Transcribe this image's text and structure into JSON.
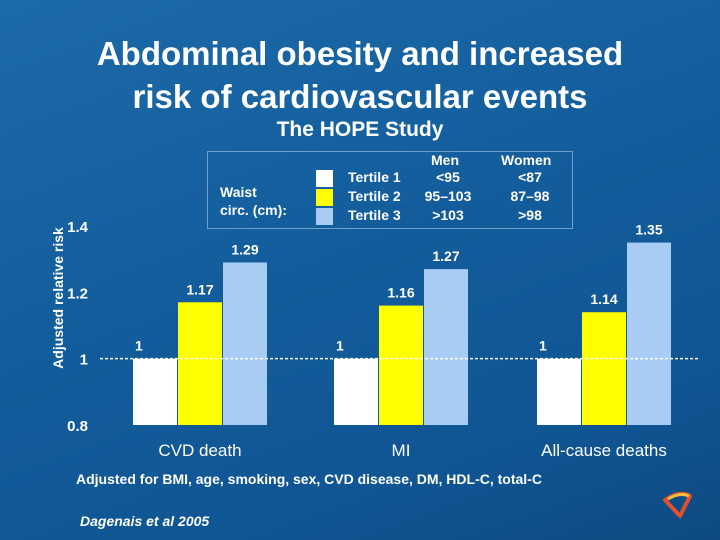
{
  "title_line1": "Abdominal obesity and increased",
  "title_line2": "risk of cardiovascular events",
  "subtitle": "The HOPE Study",
  "legend": {
    "heading": [
      "Waist",
      "circ. (cm):"
    ],
    "men_header": "Men",
    "women_header": "Women",
    "rows": [
      {
        "label": "Tertile 1",
        "men": "<95",
        "women": "<87",
        "color": "#ffffff"
      },
      {
        "label": "Tertile 2",
        "men": "95–103",
        "women": "87–98",
        "color": "#ffff00"
      },
      {
        "label": "Tertile 3",
        "men": ">103",
        "women": ">98",
        "color": "#a9ccf5"
      }
    ]
  },
  "chart_data": {
    "type": "bar",
    "ylabel": "Adjusted relative risk",
    "ylim": [
      0.8,
      1.4
    ],
    "yticks": [
      "1.4",
      "1.2",
      "1",
      "0.8"
    ],
    "reference_line": 1,
    "categories": [
      "CVD death",
      "MI",
      "All-cause deaths"
    ],
    "series": [
      {
        "name": "Tertile 1",
        "color": "#ffffff",
        "values": [
          1,
          1,
          1
        ],
        "labels": [
          "1",
          "1",
          "1"
        ]
      },
      {
        "name": "Tertile 2",
        "color": "#ffff00",
        "values": [
          1.17,
          1.16,
          1.14
        ],
        "labels": [
          "1.17",
          "1.16",
          "1.14"
        ]
      },
      {
        "name": "Tertile 3",
        "color": "#a9ccf5",
        "values": [
          1.29,
          1.27,
          1.35
        ],
        "labels": [
          "1.29",
          "1.27",
          "1.35"
        ]
      }
    ]
  },
  "footnote": "Adjusted for BMI, age, smoking, sex, CVD disease, DM, HDL-C, total-C",
  "citation": "Dagenais et al 2005",
  "logo": "logo-icon"
}
